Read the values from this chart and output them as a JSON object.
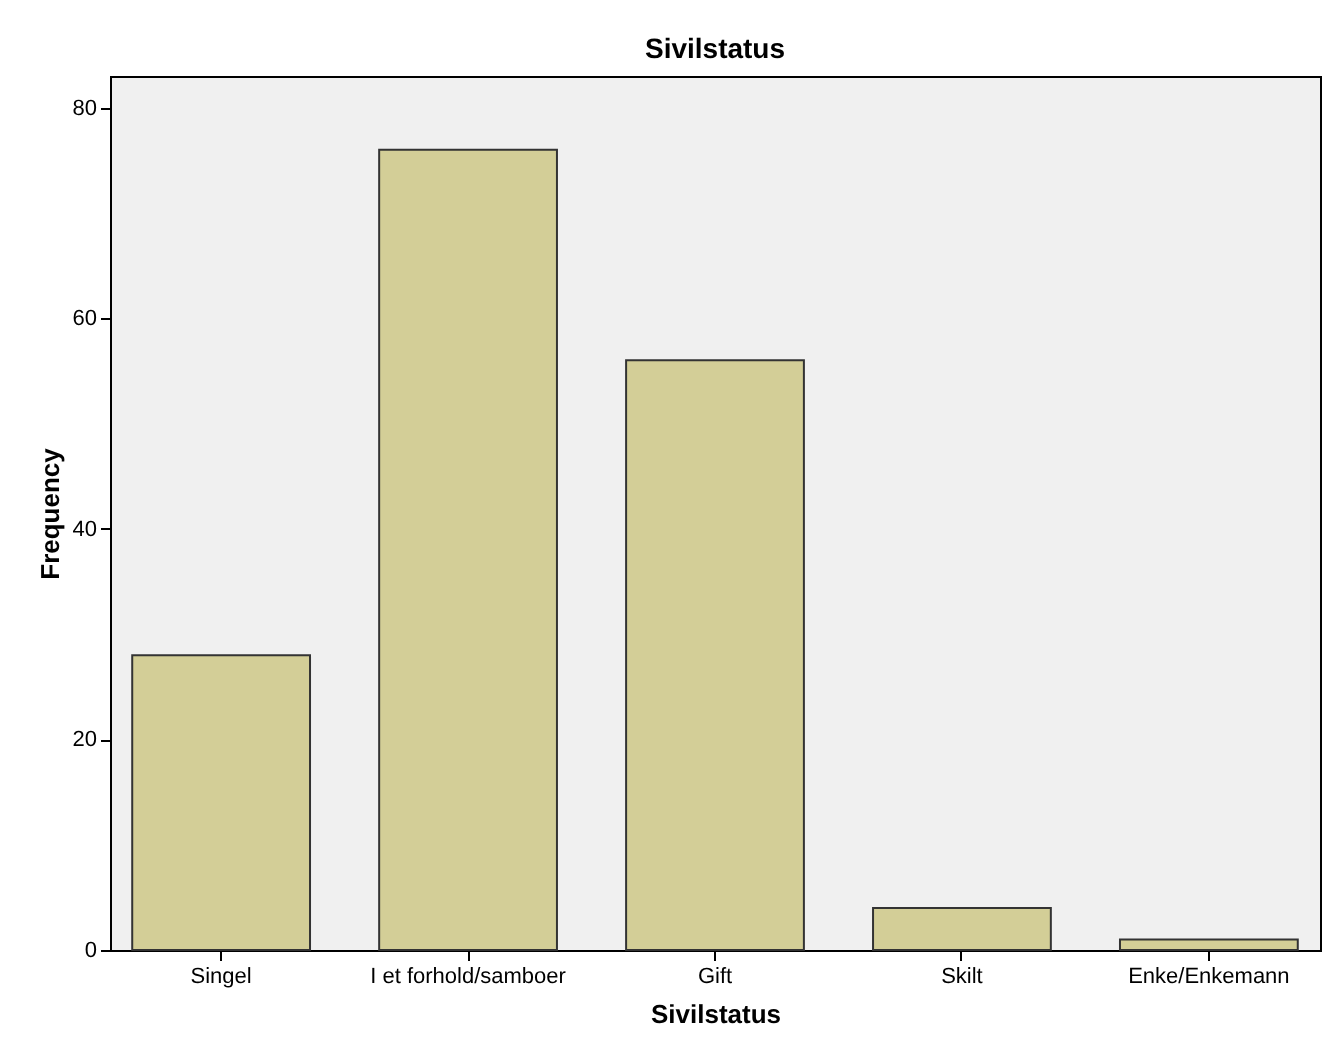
{
  "chart_data": {
    "type": "bar",
    "title": "Sivilstatus",
    "xlabel": "Sivilstatus",
    "ylabel": "Frequency",
    "categories": [
      "Singel",
      "I et forhold/samboer",
      "Gift",
      "Skilt",
      "Enke/Enkemann"
    ],
    "values": [
      28,
      76,
      56,
      4,
      1
    ],
    "color": "#d3ce97",
    "ylim": [
      0,
      83
    ],
    "yticks": [
      0,
      20,
      40,
      60,
      80
    ],
    "grid": false
  }
}
